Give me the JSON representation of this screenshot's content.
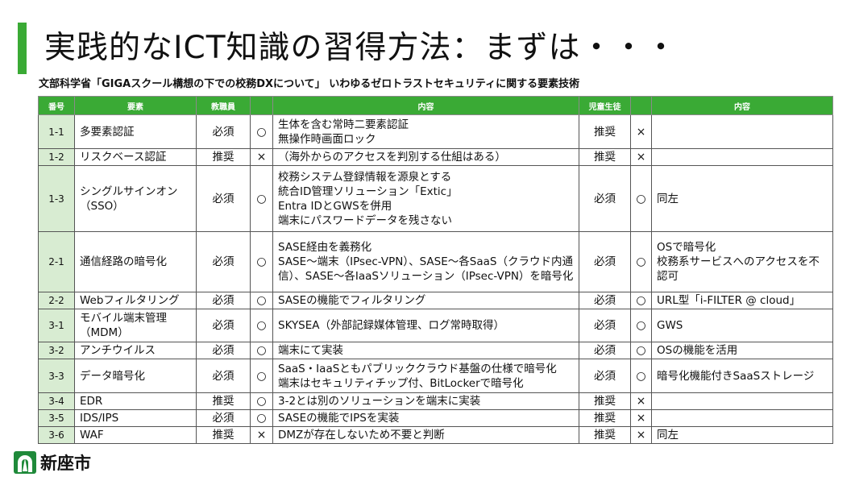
{
  "title": "実践的なICT知識の習得方法：まずは・・・",
  "subtitle": "文部科学省「GIGAスクール構想の下での校務DXについて」 いわゆるゼロトラストセキュリティに関する要素技術",
  "accent": "#3aaa35",
  "table": {
    "headers": [
      "番号",
      "要素",
      "教職員",
      "",
      "内容",
      "児童生徒",
      "",
      "内容"
    ],
    "rows": [
      {
        "no": "1-1",
        "element": "多要素認証",
        "staff": "必須",
        "staff_mark": "○",
        "staff_content": "生体を含む常時二要素認証\n無操作時画面ロック",
        "student": "推奨",
        "student_mark": "×",
        "student_content": ""
      },
      {
        "no": "1-2",
        "element": "リスクベース認証",
        "staff": "推奨",
        "staff_mark": "×",
        "staff_content": "（海外からのアクセスを判別する仕組はある）",
        "student": "推奨",
        "student_mark": "×",
        "student_content": ""
      },
      {
        "no": "1-3",
        "element": "シングルサインオン\n（SSO）",
        "staff": "必須",
        "staff_mark": "○",
        "staff_content": "校務システム登録情報を源泉とする\n統合ID管理ソリューション「Extic」\nEntra IDとGWSを併用\n端末にパスワードデータを残さない",
        "student": "必須",
        "student_mark": "○",
        "student_content": "同左"
      },
      {
        "no": "2-1",
        "element": "通信経路の暗号化",
        "staff": "必須",
        "staff_mark": "○",
        "staff_content": "SASE経由を義務化\nSASE～端末（IPsec-VPN）、SASE～各SaaS（クラウド内通信）、SASE～各IaaSソリューション（IPsec-VPN）を暗号化",
        "student": "必須",
        "student_mark": "○",
        "student_content": "OSで暗号化\n校務系サービスへのアクセスを不認可"
      },
      {
        "no": "2-2",
        "element": "Webフィルタリング",
        "staff": "必須",
        "staff_mark": "○",
        "staff_content": "SASEの機能でフィルタリング",
        "student": "必須",
        "student_mark": "○",
        "student_content": "URL型「i-FILTER @ cloud」"
      },
      {
        "no": "3-1",
        "element": "モバイル端末管理\n（MDM）",
        "staff": "必須",
        "staff_mark": "○",
        "staff_content": "SKYSEA（外部記録媒体管理、ログ常時取得）",
        "student": "必須",
        "student_mark": "○",
        "student_content": "GWS"
      },
      {
        "no": "3-2",
        "element": "アンチウイルス",
        "staff": "必須",
        "staff_mark": "○",
        "staff_content": "端末にて実装",
        "student": "必須",
        "student_mark": "○",
        "student_content": "OSの機能を活用"
      },
      {
        "no": "3-3",
        "element": "データ暗号化",
        "staff": "必須",
        "staff_mark": "○",
        "staff_content": "SaaS・IaaSともパブリッククラウド基盤の仕様で暗号化\n端末はセキュリティチップ付、BitLockerで暗号化",
        "student": "必須",
        "student_mark": "○",
        "student_content": "暗号化機能付きSaaSストレージ"
      },
      {
        "no": "3-4",
        "element": "EDR",
        "staff": "推奨",
        "staff_mark": "○",
        "staff_content": "3-2とは別のソリューションを端末に実装",
        "student": "推奨",
        "student_mark": "×",
        "student_content": ""
      },
      {
        "no": "3-5",
        "element": "IDS/IPS",
        "staff": "必須",
        "staff_mark": "○",
        "staff_content": "SASEの機能でIPSを実装",
        "student": "推奨",
        "student_mark": "×",
        "student_content": ""
      },
      {
        "no": "3-6",
        "element": "WAF",
        "staff": "推奨",
        "staff_mark": "×",
        "staff_content": "DMZが存在しないため不要と判断",
        "student": "推奨",
        "student_mark": "×",
        "student_content": "同左"
      }
    ]
  },
  "logo": {
    "text": "新座市"
  }
}
